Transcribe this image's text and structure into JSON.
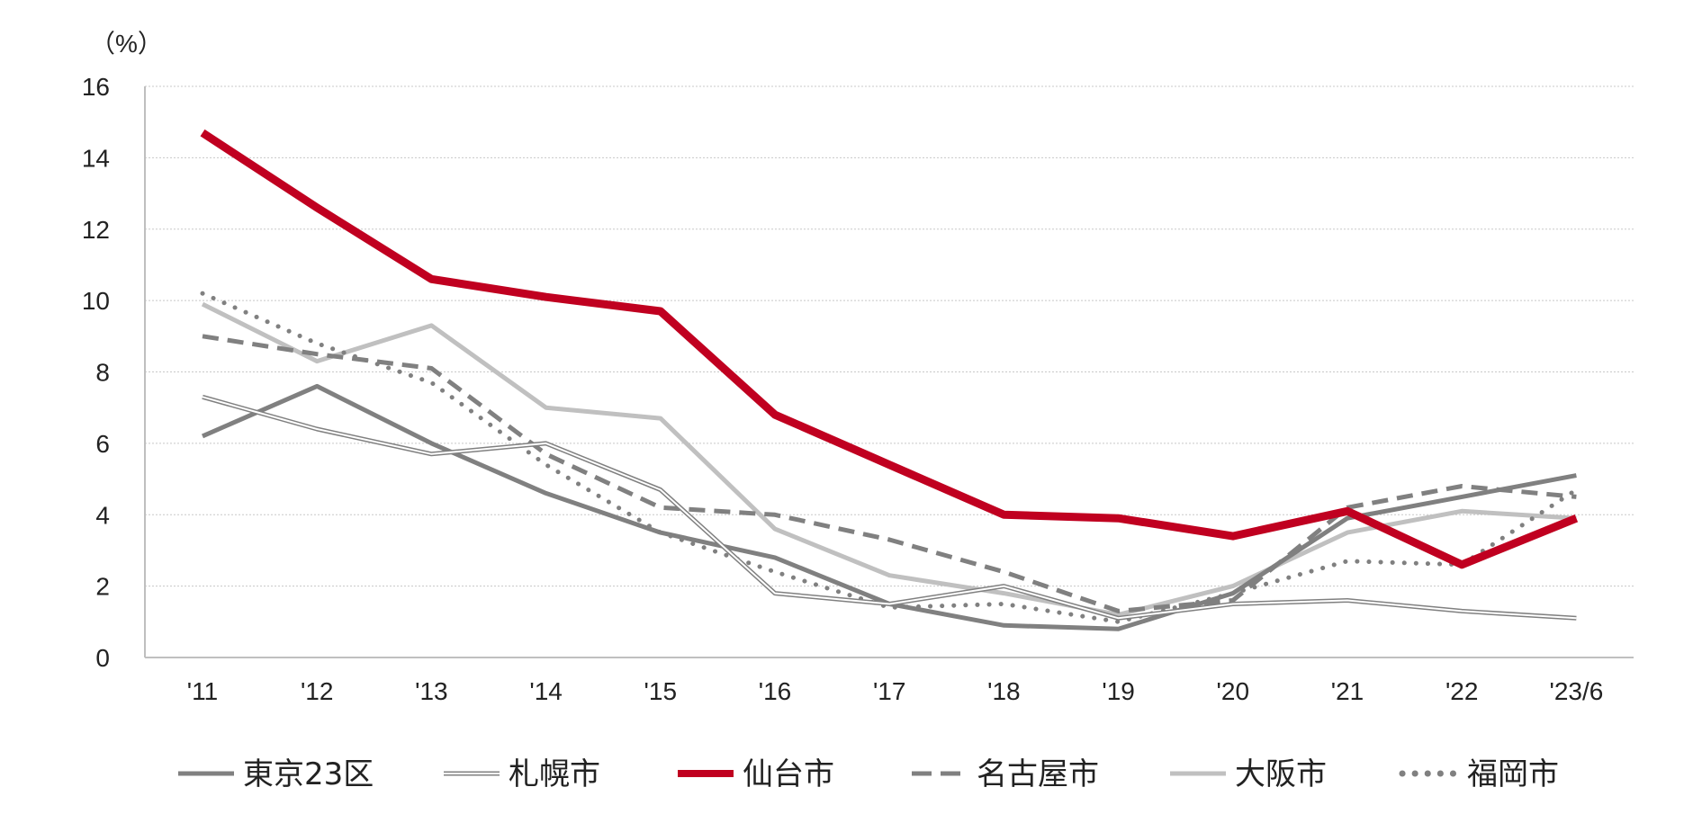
{
  "chart_data": {
    "type": "line",
    "unit_label": "（%）",
    "categories": [
      "'11",
      "'12",
      "'13",
      "'14",
      "'15",
      "'16",
      "'17",
      "'18",
      "'19",
      "'20",
      "'21",
      "'22",
      "'23/6"
    ],
    "yticks": [
      "0",
      "2",
      "4",
      "6",
      "8",
      "10",
      "12",
      "14",
      "16"
    ],
    "ylim": [
      0,
      16
    ],
    "grid": "horizontal dotted",
    "legend_position": "bottom",
    "series": [
      {
        "name": "東京23区",
        "color": "#808080",
        "style": "solid",
        "values": [
          6.2,
          7.6,
          6.0,
          4.6,
          3.5,
          2.8,
          1.5,
          0.9,
          0.8,
          1.8,
          3.9,
          4.5,
          5.1
        ]
      },
      {
        "name": "札幌市",
        "color": "#808080",
        "style": "double",
        "values": [
          7.3,
          6.4,
          5.7,
          6.0,
          4.7,
          1.8,
          1.5,
          2.0,
          1.1,
          1.5,
          1.6,
          1.3,
          1.1
        ]
      },
      {
        "name": "仙台市",
        "color": "#c00020",
        "style": "thick",
        "values": [
          14.7,
          12.6,
          10.6,
          10.1,
          9.7,
          6.8,
          5.4,
          4.0,
          3.9,
          3.4,
          4.1,
          2.6,
          3.9
        ]
      },
      {
        "name": "名古屋市",
        "color": "#808080",
        "style": "dashed",
        "values": [
          9.0,
          8.5,
          8.1,
          5.7,
          4.2,
          4.0,
          3.3,
          2.4,
          1.3,
          1.6,
          4.2,
          4.8,
          4.5
        ]
      },
      {
        "name": "大阪市",
        "color": "#c0c0c0",
        "style": "solid",
        "values": [
          9.9,
          8.3,
          9.3,
          7.0,
          6.7,
          3.6,
          2.3,
          1.8,
          1.2,
          2.0,
          3.5,
          4.1,
          3.9
        ]
      },
      {
        "name": "福岡市",
        "color": "#808080",
        "style": "dotted",
        "values": [
          10.2,
          8.8,
          7.7,
          5.4,
          3.5,
          2.4,
          1.4,
          1.5,
          1.0,
          1.8,
          2.7,
          2.6,
          4.7
        ]
      }
    ]
  }
}
